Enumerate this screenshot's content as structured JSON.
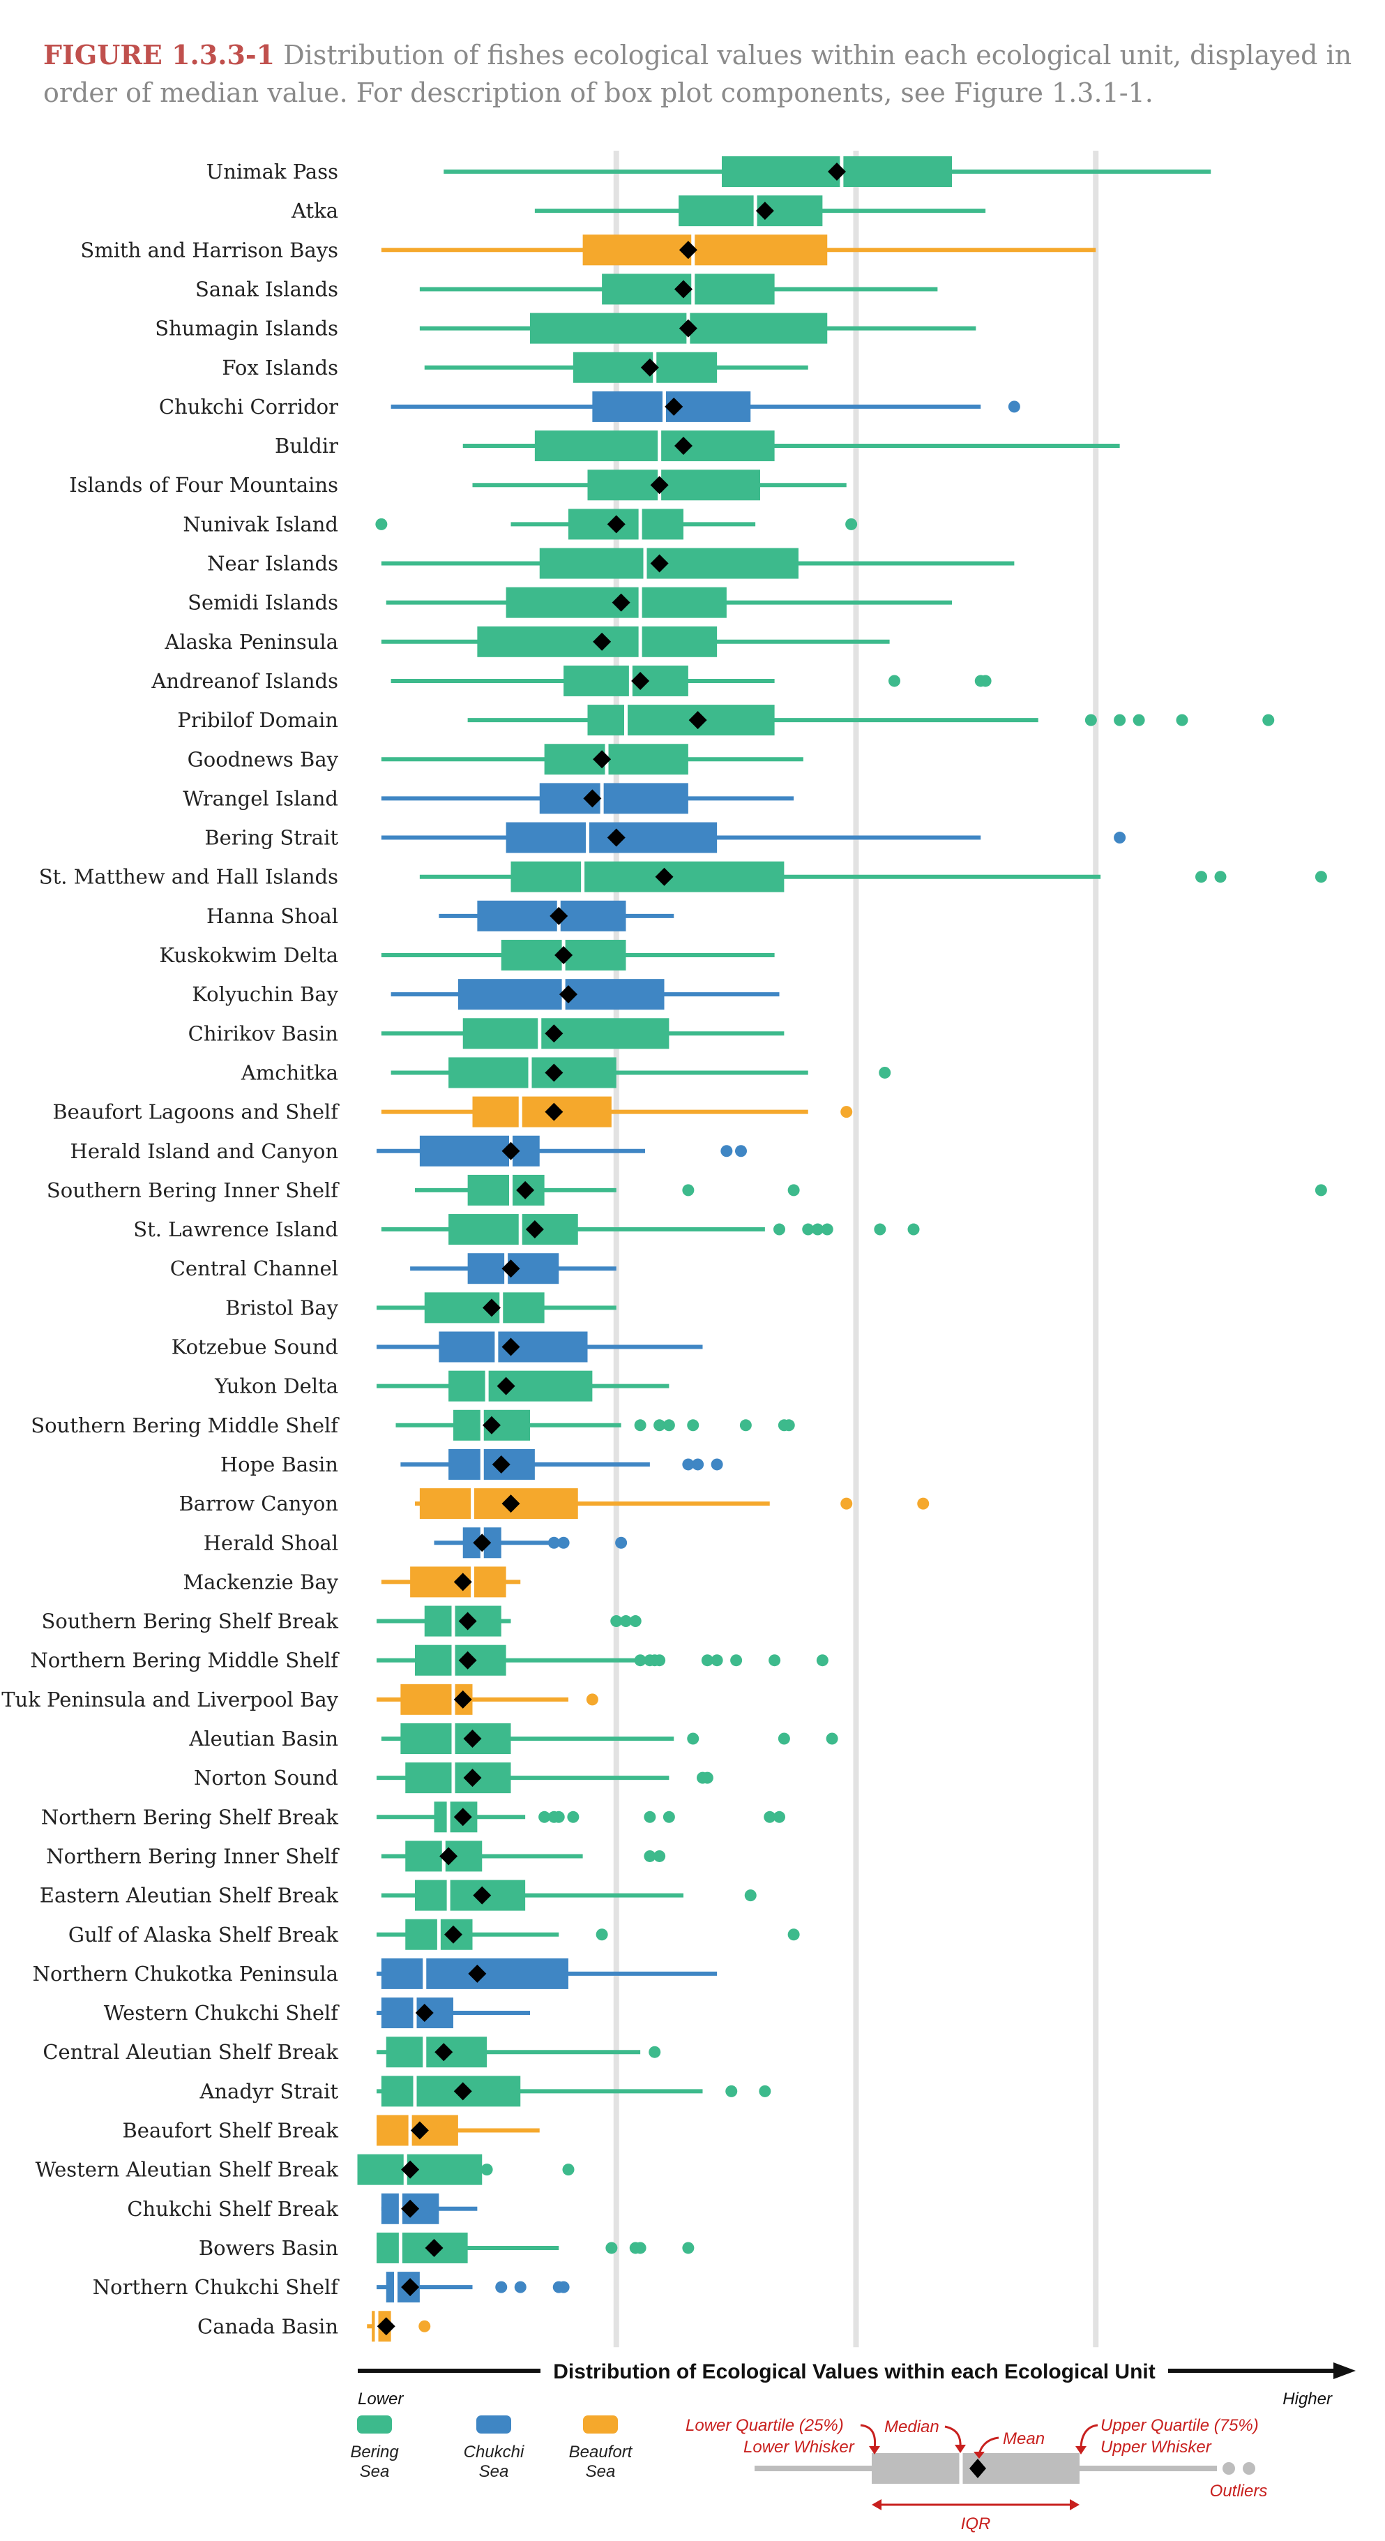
{
  "figure": {
    "number": "FIGURE 1.3.3-1",
    "caption": "Distribution of fishes ecological values within each ecological unit, displayed in order of median value. For description of box plot components, see Figure 1.3.1-1."
  },
  "colors": {
    "bering": "#3dba8c",
    "chukchi": "#3f86c4",
    "beaufort": "#f5a82c",
    "grid": "#e2e2e2",
    "red": "#c8201e",
    "gray": "#bdbdbd"
  },
  "chart_data": {
    "type": "boxplot",
    "xlabel": "Distribution of Ecological Values within each Ecological Unit",
    "xlow": "Lower",
    "xhigh": "Higher",
    "xlim": [
      0,
      100
    ],
    "gridlines": [
      25,
      50,
      75
    ],
    "legend": [
      {
        "sea": "bering",
        "label": "Bering Sea"
      },
      {
        "sea": "chukchi",
        "label": "Chukchi Sea"
      },
      {
        "sea": "beaufort",
        "label": "Beaufort Sea"
      }
    ],
    "key": {
      "lower_quartile": "Lower Quartile (25%)",
      "median": "Median",
      "mean": "Mean",
      "upper_quartile": "Upper Quartile (75%)",
      "lower_whisker": "Lower Whisker",
      "upper_whisker": "Upper Whisker",
      "outliers": "Outliers",
      "iqr": "IQR"
    },
    "units": [
      {
        "name": "Unimak Pass",
        "sea": "bering",
        "wl": 7,
        "q1": 36,
        "med": 48.5,
        "q3": 60,
        "wh": 87,
        "mean": 48,
        "out": []
      },
      {
        "name": "Atka",
        "sea": "bering",
        "wl": 16.5,
        "q1": 31.5,
        "med": 39.5,
        "q3": 46.5,
        "wh": 63.5,
        "mean": 40.5,
        "out": []
      },
      {
        "name": "Smith and Harrison Bays",
        "sea": "beaufort",
        "wl": 0.5,
        "q1": 21.5,
        "med": 33,
        "q3": 47,
        "wh": 75,
        "mean": 32.5,
        "out": []
      },
      {
        "name": "Sanak Islands",
        "sea": "bering",
        "wl": 4.5,
        "q1": 23.5,
        "med": 33,
        "q3": 41.5,
        "wh": 58.5,
        "mean": 32,
        "out": []
      },
      {
        "name": "Shumagin Islands",
        "sea": "bering",
        "wl": 4.5,
        "q1": 16,
        "med": 32.5,
        "q3": 47,
        "wh": 62.5,
        "mean": 32.5,
        "out": []
      },
      {
        "name": "Fox Islands",
        "sea": "bering",
        "wl": 5,
        "q1": 20.5,
        "med": 29,
        "q3": 35.5,
        "wh": 45,
        "mean": 28.5,
        "out": []
      },
      {
        "name": "Chukchi Corridor",
        "sea": "chukchi",
        "wl": 1.5,
        "q1": 22.5,
        "med": 30,
        "q3": 39,
        "wh": 63,
        "mean": 31,
        "out": [
          66.5
        ]
      },
      {
        "name": "Buldir",
        "sea": "bering",
        "wl": 9,
        "q1": 16.5,
        "med": 29.5,
        "q3": 41.5,
        "wh": 77.5,
        "mean": 32,
        "out": []
      },
      {
        "name": "Islands of Four Mountains",
        "sea": "bering",
        "wl": 10,
        "q1": 22,
        "med": 29.5,
        "q3": 40,
        "wh": 49,
        "mean": 29.5,
        "out": []
      },
      {
        "name": "Nunivak Island",
        "sea": "bering",
        "wl": 14,
        "q1": 20,
        "med": 27.5,
        "q3": 32,
        "wh": 39.5,
        "mean": 25,
        "out": [
          0.5,
          49.5
        ]
      },
      {
        "name": "Near Islands",
        "sea": "bering",
        "wl": 0.5,
        "q1": 17,
        "med": 28,
        "q3": 44,
        "wh": 66.5,
        "mean": 29.5,
        "out": []
      },
      {
        "name": "Semidi Islands",
        "sea": "bering",
        "wl": 1,
        "q1": 13.5,
        "med": 27.5,
        "q3": 36.5,
        "wh": 60,
        "mean": 25.5,
        "out": []
      },
      {
        "name": "Alaska Peninsula",
        "sea": "bering",
        "wl": 0.5,
        "q1": 10.5,
        "med": 27.5,
        "q3": 35.5,
        "wh": 53.5,
        "mean": 23.5,
        "out": []
      },
      {
        "name": "Andreanof Islands",
        "sea": "bering",
        "wl": 1.5,
        "q1": 19.5,
        "med": 26.5,
        "q3": 32.5,
        "wh": 41.5,
        "mean": 27.5,
        "out": [
          54,
          63,
          63.5
        ]
      },
      {
        "name": "Pribilof Domain",
        "sea": "bering",
        "wl": 9.5,
        "q1": 22,
        "med": 26,
        "q3": 41.5,
        "wh": 69,
        "mean": 33.5,
        "out": [
          74.5,
          77.5,
          79.5,
          84,
          93
        ]
      },
      {
        "name": "Goodnews Bay",
        "sea": "bering",
        "wl": 0.5,
        "q1": 17.5,
        "med": 24,
        "q3": 32.5,
        "wh": 44.5,
        "mean": 23.5,
        "out": []
      },
      {
        "name": "Wrangel Island",
        "sea": "chukchi",
        "wl": 0.5,
        "q1": 17,
        "med": 23.5,
        "q3": 32.5,
        "wh": 43.5,
        "mean": 22.5,
        "out": []
      },
      {
        "name": "Bering Strait",
        "sea": "chukchi",
        "wl": 0.5,
        "q1": 13.5,
        "med": 22,
        "q3": 35.5,
        "wh": 63,
        "mean": 25,
        "out": [
          77.5
        ]
      },
      {
        "name": "St. Matthew and Hall Islands",
        "sea": "bering",
        "wl": 4.5,
        "q1": 14,
        "med": 21.5,
        "q3": 42.5,
        "wh": 75.5,
        "mean": 30,
        "out": [
          86,
          88,
          98.5
        ]
      },
      {
        "name": "Hanna Shoal",
        "sea": "chukchi",
        "wl": 6.5,
        "q1": 10.5,
        "med": 19,
        "q3": 26,
        "wh": 31,
        "mean": 19,
        "out": []
      },
      {
        "name": "Kuskokwim Delta",
        "sea": "bering",
        "wl": 0.5,
        "q1": 13,
        "med": 19.5,
        "q3": 26,
        "wh": 41.5,
        "mean": 19.5,
        "out": []
      },
      {
        "name": "Kolyuchin Bay",
        "sea": "chukchi",
        "wl": 1.5,
        "q1": 8.5,
        "med": 19.5,
        "q3": 30,
        "wh": 42,
        "mean": 20,
        "out": []
      },
      {
        "name": "Chirikov Basin",
        "sea": "bering",
        "wl": 0.5,
        "q1": 9,
        "med": 17,
        "q3": 30.5,
        "wh": 42.5,
        "mean": 18.5,
        "out": []
      },
      {
        "name": "Amchitka",
        "sea": "bering",
        "wl": 1.5,
        "q1": 7.5,
        "med": 16,
        "q3": 25,
        "wh": 45,
        "mean": 18.5,
        "out": [
          53
        ]
      },
      {
        "name": "Beaufort Lagoons and Shelf",
        "sea": "beaufort",
        "wl": 0.5,
        "q1": 10,
        "med": 15,
        "q3": 24.5,
        "wh": 45,
        "mean": 18.5,
        "out": [
          49
        ]
      },
      {
        "name": "Herald Island and Canyon",
        "sea": "chukchi",
        "wl": 0,
        "q1": 4.5,
        "med": 14,
        "q3": 17,
        "wh": 28,
        "mean": 14,
        "out": [
          36.5,
          38
        ]
      },
      {
        "name": "Southern Bering Inner Shelf",
        "sea": "bering",
        "wl": 4,
        "q1": 9.5,
        "med": 14,
        "q3": 17.5,
        "wh": 25,
        "mean": 15.5,
        "out": [
          32.5,
          43.5,
          98.5
        ]
      },
      {
        "name": "St. Lawrence Island",
        "sea": "bering",
        "wl": 0.5,
        "q1": 7.5,
        "med": 15,
        "q3": 21,
        "wh": 40.5,
        "mean": 16.5,
        "out": [
          42,
          45,
          46,
          47,
          52.5,
          56
        ]
      },
      {
        "name": "Central Channel",
        "sea": "chukchi",
        "wl": 3.5,
        "q1": 9.5,
        "med": 13.5,
        "q3": 19,
        "wh": 25,
        "mean": 14,
        "out": []
      },
      {
        "name": "Bristol Bay",
        "sea": "bering",
        "wl": 0,
        "q1": 5,
        "med": 13,
        "q3": 17.5,
        "wh": 25,
        "mean": 12,
        "out": []
      },
      {
        "name": "Kotzebue Sound",
        "sea": "chukchi",
        "wl": 0,
        "q1": 6.5,
        "med": 12.5,
        "q3": 22,
        "wh": 34,
        "mean": 14,
        "out": []
      },
      {
        "name": "Yukon Delta",
        "sea": "bering",
        "wl": 0,
        "q1": 7.5,
        "med": 11.5,
        "q3": 22.5,
        "wh": 30.5,
        "mean": 13.5,
        "out": []
      },
      {
        "name": "Southern Bering Middle Shelf",
        "sea": "bering",
        "wl": 2,
        "q1": 8,
        "med": 11,
        "q3": 16,
        "wh": 25.5,
        "mean": 12,
        "out": [
          27.5,
          29.5,
          30.5,
          33,
          38.5,
          42.5,
          43
        ]
      },
      {
        "name": "Hope Basin",
        "sea": "chukchi",
        "wl": 2.5,
        "q1": 7.5,
        "med": 11,
        "q3": 16.5,
        "wh": 28.5,
        "mean": 13,
        "out": [
          32.5,
          33.5,
          35.5
        ]
      },
      {
        "name": "Barrow Canyon",
        "sea": "beaufort",
        "wl": 4,
        "q1": 4.5,
        "med": 10,
        "q3": 21,
        "wh": 41,
        "mean": 14,
        "out": [
          49,
          57
        ]
      },
      {
        "name": "Herald Shoal",
        "sea": "chukchi",
        "wl": 6,
        "q1": 9,
        "med": 11,
        "q3": 13,
        "wh": 18,
        "mean": 11,
        "out": [
          18.5,
          19.5,
          25.5
        ]
      },
      {
        "name": "Mackenzie Bay",
        "sea": "beaufort",
        "wl": 0.5,
        "q1": 3.5,
        "med": 10,
        "q3": 13.5,
        "wh": 15,
        "mean": 9,
        "out": []
      },
      {
        "name": "Southern Bering Shelf Break",
        "sea": "bering",
        "wl": 0,
        "q1": 5,
        "med": 8,
        "q3": 13,
        "wh": 14,
        "mean": 9.5,
        "out": [
          25,
          26,
          27
        ]
      },
      {
        "name": "Northern Bering Middle Shelf",
        "sea": "bering",
        "wl": 0,
        "q1": 4,
        "med": 8,
        "q3": 13.5,
        "wh": 27,
        "mean": 9.5,
        "out": [
          27.5,
          28.5,
          29,
          29.5,
          34.5,
          35.5,
          37.5,
          41.5,
          46.5
        ]
      },
      {
        "name": "Tuk Peninsula and Liverpool Bay",
        "sea": "beaufort",
        "wl": 0,
        "q1": 2.5,
        "med": 8,
        "q3": 10,
        "wh": 20,
        "mean": 9,
        "out": [
          22.5
        ]
      },
      {
        "name": "Aleutian Basin",
        "sea": "bering",
        "wl": 0.5,
        "q1": 2.5,
        "med": 8,
        "q3": 14,
        "wh": 31,
        "mean": 10,
        "out": [
          33,
          42.5,
          47.5
        ]
      },
      {
        "name": "Norton Sound",
        "sea": "bering",
        "wl": 0,
        "q1": 3,
        "med": 8,
        "q3": 14,
        "wh": 30.5,
        "mean": 10,
        "out": [
          34,
          34.5
        ]
      },
      {
        "name": "Northern Bering Shelf Break",
        "sea": "bering",
        "wl": 0,
        "q1": 6,
        "med": 7.5,
        "q3": 10.5,
        "wh": 15.5,
        "mean": 9,
        "out": [
          17.5,
          18.5,
          19,
          20.5,
          28.5,
          30.5,
          41,
          42
        ]
      },
      {
        "name": "Northern Bering Inner Shelf",
        "sea": "bering",
        "wl": 0.5,
        "q1": 3,
        "med": 7,
        "q3": 11,
        "wh": 21.5,
        "mean": 7.5,
        "out": [
          28.5,
          29.5
        ]
      },
      {
        "name": "Eastern Aleutian Shelf Break",
        "sea": "bering",
        "wl": 0.5,
        "q1": 4,
        "med": 7.5,
        "q3": 15.5,
        "wh": 32,
        "mean": 11,
        "out": [
          39
        ]
      },
      {
        "name": "Gulf of Alaska Shelf Break",
        "sea": "bering",
        "wl": 0,
        "q1": 3,
        "med": 6.5,
        "q3": 10,
        "wh": 19,
        "mean": 8,
        "out": [
          23.5,
          43.5
        ]
      },
      {
        "name": "Northern Chukotka Peninsula",
        "sea": "chukchi",
        "wl": 0,
        "q1": 0.5,
        "med": 5,
        "q3": 20,
        "wh": 35.5,
        "mean": 10.5,
        "out": []
      },
      {
        "name": "Western Chukchi Shelf",
        "sea": "chukchi",
        "wl": 0,
        "q1": 0.5,
        "med": 4,
        "q3": 8,
        "wh": 16,
        "mean": 5,
        "out": []
      },
      {
        "name": "Central Aleutian Shelf Break",
        "sea": "bering",
        "wl": 0,
        "q1": 1,
        "med": 5,
        "q3": 11.5,
        "wh": 27.5,
        "mean": 7,
        "out": [
          29
        ]
      },
      {
        "name": "Anadyr Strait",
        "sea": "bering",
        "wl": 0,
        "q1": 0.5,
        "med": 4,
        "q3": 15,
        "wh": 34,
        "mean": 9,
        "out": [
          37,
          40.5
        ]
      },
      {
        "name": "Beaufort Shelf Break",
        "sea": "beaufort",
        "wl": 0,
        "q1": 0,
        "med": 3.5,
        "q3": 8.5,
        "wh": 17,
        "mean": 4.5,
        "out": []
      },
      {
        "name": "Western Aleutian Shelf Break",
        "sea": "bering",
        "wl": 0,
        "q1": -2,
        "med": 3,
        "q3": 11,
        "wh": 11.5,
        "mean": 3.5,
        "out": [
          11.5,
          20
        ]
      },
      {
        "name": "Chukchi Shelf Break",
        "sea": "chukchi",
        "wl": 0.5,
        "q1": 0.5,
        "med": 2.5,
        "q3": 6.5,
        "wh": 10.5,
        "mean": 3.5,
        "out": []
      },
      {
        "name": "Bowers Basin",
        "sea": "bering",
        "wl": 0,
        "q1": 0,
        "med": 2.5,
        "q3": 9.5,
        "wh": 19,
        "mean": 6,
        "out": [
          24.5,
          27,
          27.5,
          32.5
        ]
      },
      {
        "name": "Northern Chukchi Shelf",
        "sea": "chukchi",
        "wl": 0,
        "q1": 1,
        "med": 2,
        "q3": 4.5,
        "wh": 10,
        "mean": 3.5,
        "out": [
          13,
          15,
          19,
          19.5
        ]
      },
      {
        "name": "Canada Basin",
        "sea": "beaufort",
        "wl": -1,
        "q1": -0.5,
        "med": 0,
        "q3": 1.5,
        "wh": 1.5,
        "mean": 1,
        "out": [
          5
        ]
      }
    ]
  }
}
